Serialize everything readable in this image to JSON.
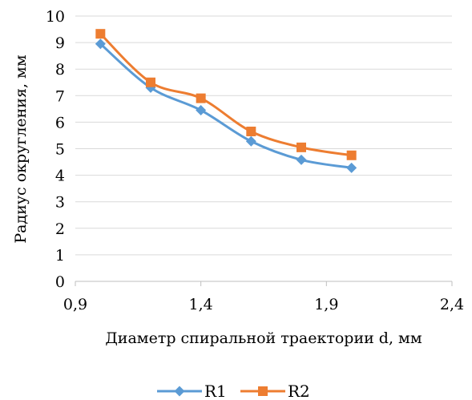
{
  "chart_data": {
    "type": "line",
    "xlabel": "Диаметр спиральной траектории d, мм",
    "ylabel": "Радиус округления, мм",
    "xlim": [
      0.9,
      2.4
    ],
    "ylim": [
      0,
      10
    ],
    "x_ticks": [
      "0,9",
      "1,4",
      "1,9",
      "2,4"
    ],
    "y_ticks": [
      "0",
      "1",
      "2",
      "3",
      "4",
      "5",
      "6",
      "7",
      "8",
      "9",
      "10"
    ],
    "grid": "horizontal",
    "legend_position": "bottom",
    "series": [
      {
        "name": "R1",
        "color": "#5b9bd5",
        "marker": "diamond",
        "x": [
          1.0,
          1.2,
          1.4,
          1.6,
          1.8,
          2.0
        ],
        "y": [
          8.95,
          7.3,
          6.45,
          5.28,
          4.58,
          4.28
        ]
      },
      {
        "name": "R2",
        "color": "#ed7d31",
        "marker": "square",
        "x": [
          1.0,
          1.2,
          1.4,
          1.6,
          1.8,
          2.0
        ],
        "y": [
          9.33,
          7.5,
          6.9,
          5.65,
          5.05,
          4.75
        ]
      }
    ]
  }
}
